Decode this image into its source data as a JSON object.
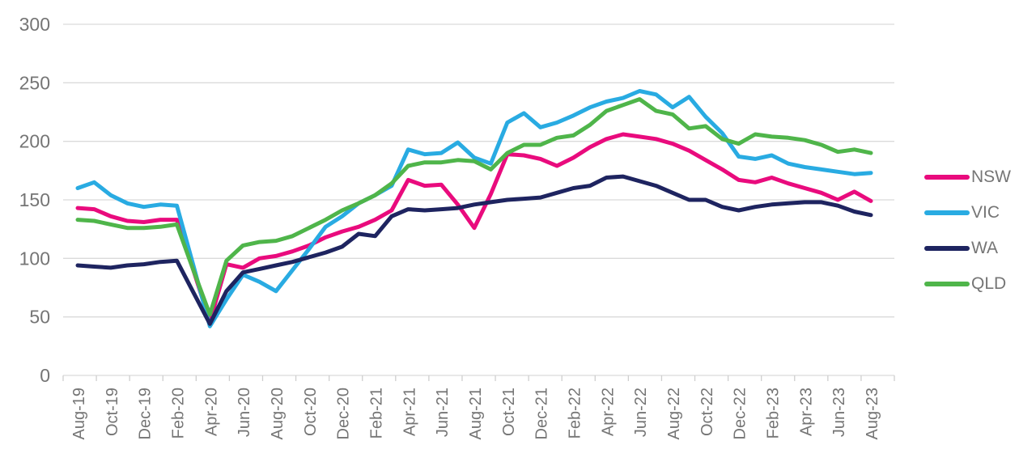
{
  "chart_data": {
    "type": "line",
    "title": "",
    "xlabel": "",
    "ylabel": "",
    "ylim": [
      0,
      300
    ],
    "y_ticks": [
      0,
      50,
      100,
      150,
      200,
      250,
      300
    ],
    "x_label_every": 2,
    "grid": true,
    "legend_position": "right",
    "colors": {
      "grid": "#dadada",
      "tick": "#cfcfcf",
      "axis_label": "#757575",
      "background": "#ffffff"
    },
    "categories": [
      "Aug-19",
      "Sep-19",
      "Oct-19",
      "Nov-19",
      "Dec-19",
      "Jan-20",
      "Feb-20",
      "Mar-20",
      "Apr-20",
      "May-20",
      "Jun-20",
      "Jul-20",
      "Aug-20",
      "Sep-20",
      "Oct-20",
      "Nov-20",
      "Dec-20",
      "Jan-21",
      "Feb-21",
      "Mar-21",
      "Apr-21",
      "May-21",
      "Jun-21",
      "Jul-21",
      "Aug-21",
      "Sep-21",
      "Oct-21",
      "Nov-21",
      "Dec-21",
      "Jan-22",
      "Feb-22",
      "Mar-22",
      "Apr-22",
      "May-22",
      "Jun-22",
      "Jul-22",
      "Aug-22",
      "Sep-22",
      "Oct-22",
      "Nov-22",
      "Dec-22",
      "Jan-23",
      "Feb-23",
      "Mar-23",
      "Apr-23",
      "May-23",
      "Jun-23",
      "Jul-23",
      "Aug-23"
    ],
    "series": [
      {
        "name": "NSW",
        "color": "#e90b7d",
        "values": [
          143,
          142,
          136,
          132,
          131,
          133,
          133,
          90,
          46,
          95,
          92,
          100,
          102,
          106,
          111,
          118,
          123,
          127,
          133,
          141,
          167,
          162,
          163,
          146,
          126,
          155,
          189,
          188,
          185,
          179,
          186,
          195,
          202,
          206,
          204,
          202,
          198,
          192,
          184,
          176,
          167,
          165,
          169,
          164,
          160,
          156,
          150,
          157,
          149
        ]
      },
      {
        "name": "VIC",
        "color": "#29abe2",
        "values": [
          160,
          165,
          154,
          147,
          144,
          146,
          145,
          94,
          42,
          65,
          86,
          80,
          72,
          90,
          108,
          127,
          136,
          147,
          154,
          162,
          193,
          189,
          190,
          199,
          186,
          181,
          216,
          224,
          212,
          216,
          222,
          229,
          234,
          237,
          243,
          240,
          229,
          238,
          221,
          207,
          187,
          185,
          188,
          181,
          178,
          176,
          174,
          172,
          173
        ]
      },
      {
        "name": "WA",
        "color": "#1e2460",
        "values": [
          94,
          93,
          92,
          94,
          95,
          97,
          98,
          71,
          44,
          72,
          88,
          91,
          94,
          97,
          101,
          105,
          110,
          121,
          119,
          136,
          142,
          141,
          142,
          143,
          146,
          148,
          150,
          151,
          152,
          156,
          160,
          162,
          169,
          170,
          166,
          162,
          156,
          150,
          150,
          144,
          141,
          144,
          146,
          147,
          148,
          148,
          145,
          140,
          137
        ]
      },
      {
        "name": "QLD",
        "color": "#4fb54a",
        "values": [
          133,
          132,
          129,
          126,
          126,
          127,
          129,
          90,
          52,
          98,
          111,
          114,
          115,
          119,
          126,
          133,
          141,
          147,
          154,
          164,
          179,
          182,
          182,
          184,
          183,
          176,
          190,
          197,
          197,
          203,
          205,
          214,
          226,
          231,
          236,
          226,
          223,
          211,
          213,
          202,
          198,
          206,
          204,
          203,
          201,
          197,
          191,
          193,
          190
        ]
      }
    ]
  }
}
